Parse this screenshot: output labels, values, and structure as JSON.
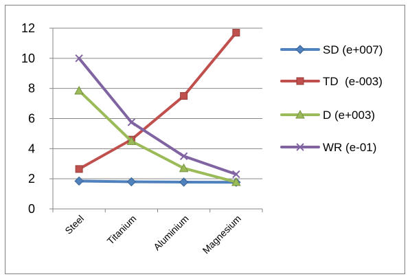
{
  "chart_data": {
    "type": "line",
    "title": "",
    "xlabel": "",
    "ylabel": "",
    "categories": [
      "Steel",
      "Titanium",
      "Aluminium",
      "Magnesium"
    ],
    "ylim": [
      0,
      12
    ],
    "yticks": [
      "0",
      "2",
      "4",
      "6",
      "8",
      "10",
      "12"
    ],
    "grid": "horizontal",
    "legend_position": "right",
    "series": [
      {
        "name": "SD (e+007)",
        "values": [
          1.85,
          1.8,
          1.78,
          1.77
        ],
        "color": "#4f81bd",
        "marker": "diamond"
      },
      {
        "name": "TD  (e-003)",
        "values": [
          2.65,
          4.6,
          7.5,
          11.7
        ],
        "color": "#c0504d",
        "marker": "square"
      },
      {
        "name": "D (e+003)",
        "values": [
          7.85,
          4.5,
          2.7,
          1.78
        ],
        "color": "#9bbb59",
        "marker": "triangle"
      },
      {
        "name": "WR (e-01)",
        "values": [
          10.0,
          5.75,
          3.5,
          2.3
        ],
        "color": "#8064a2",
        "marker": "x"
      }
    ]
  }
}
